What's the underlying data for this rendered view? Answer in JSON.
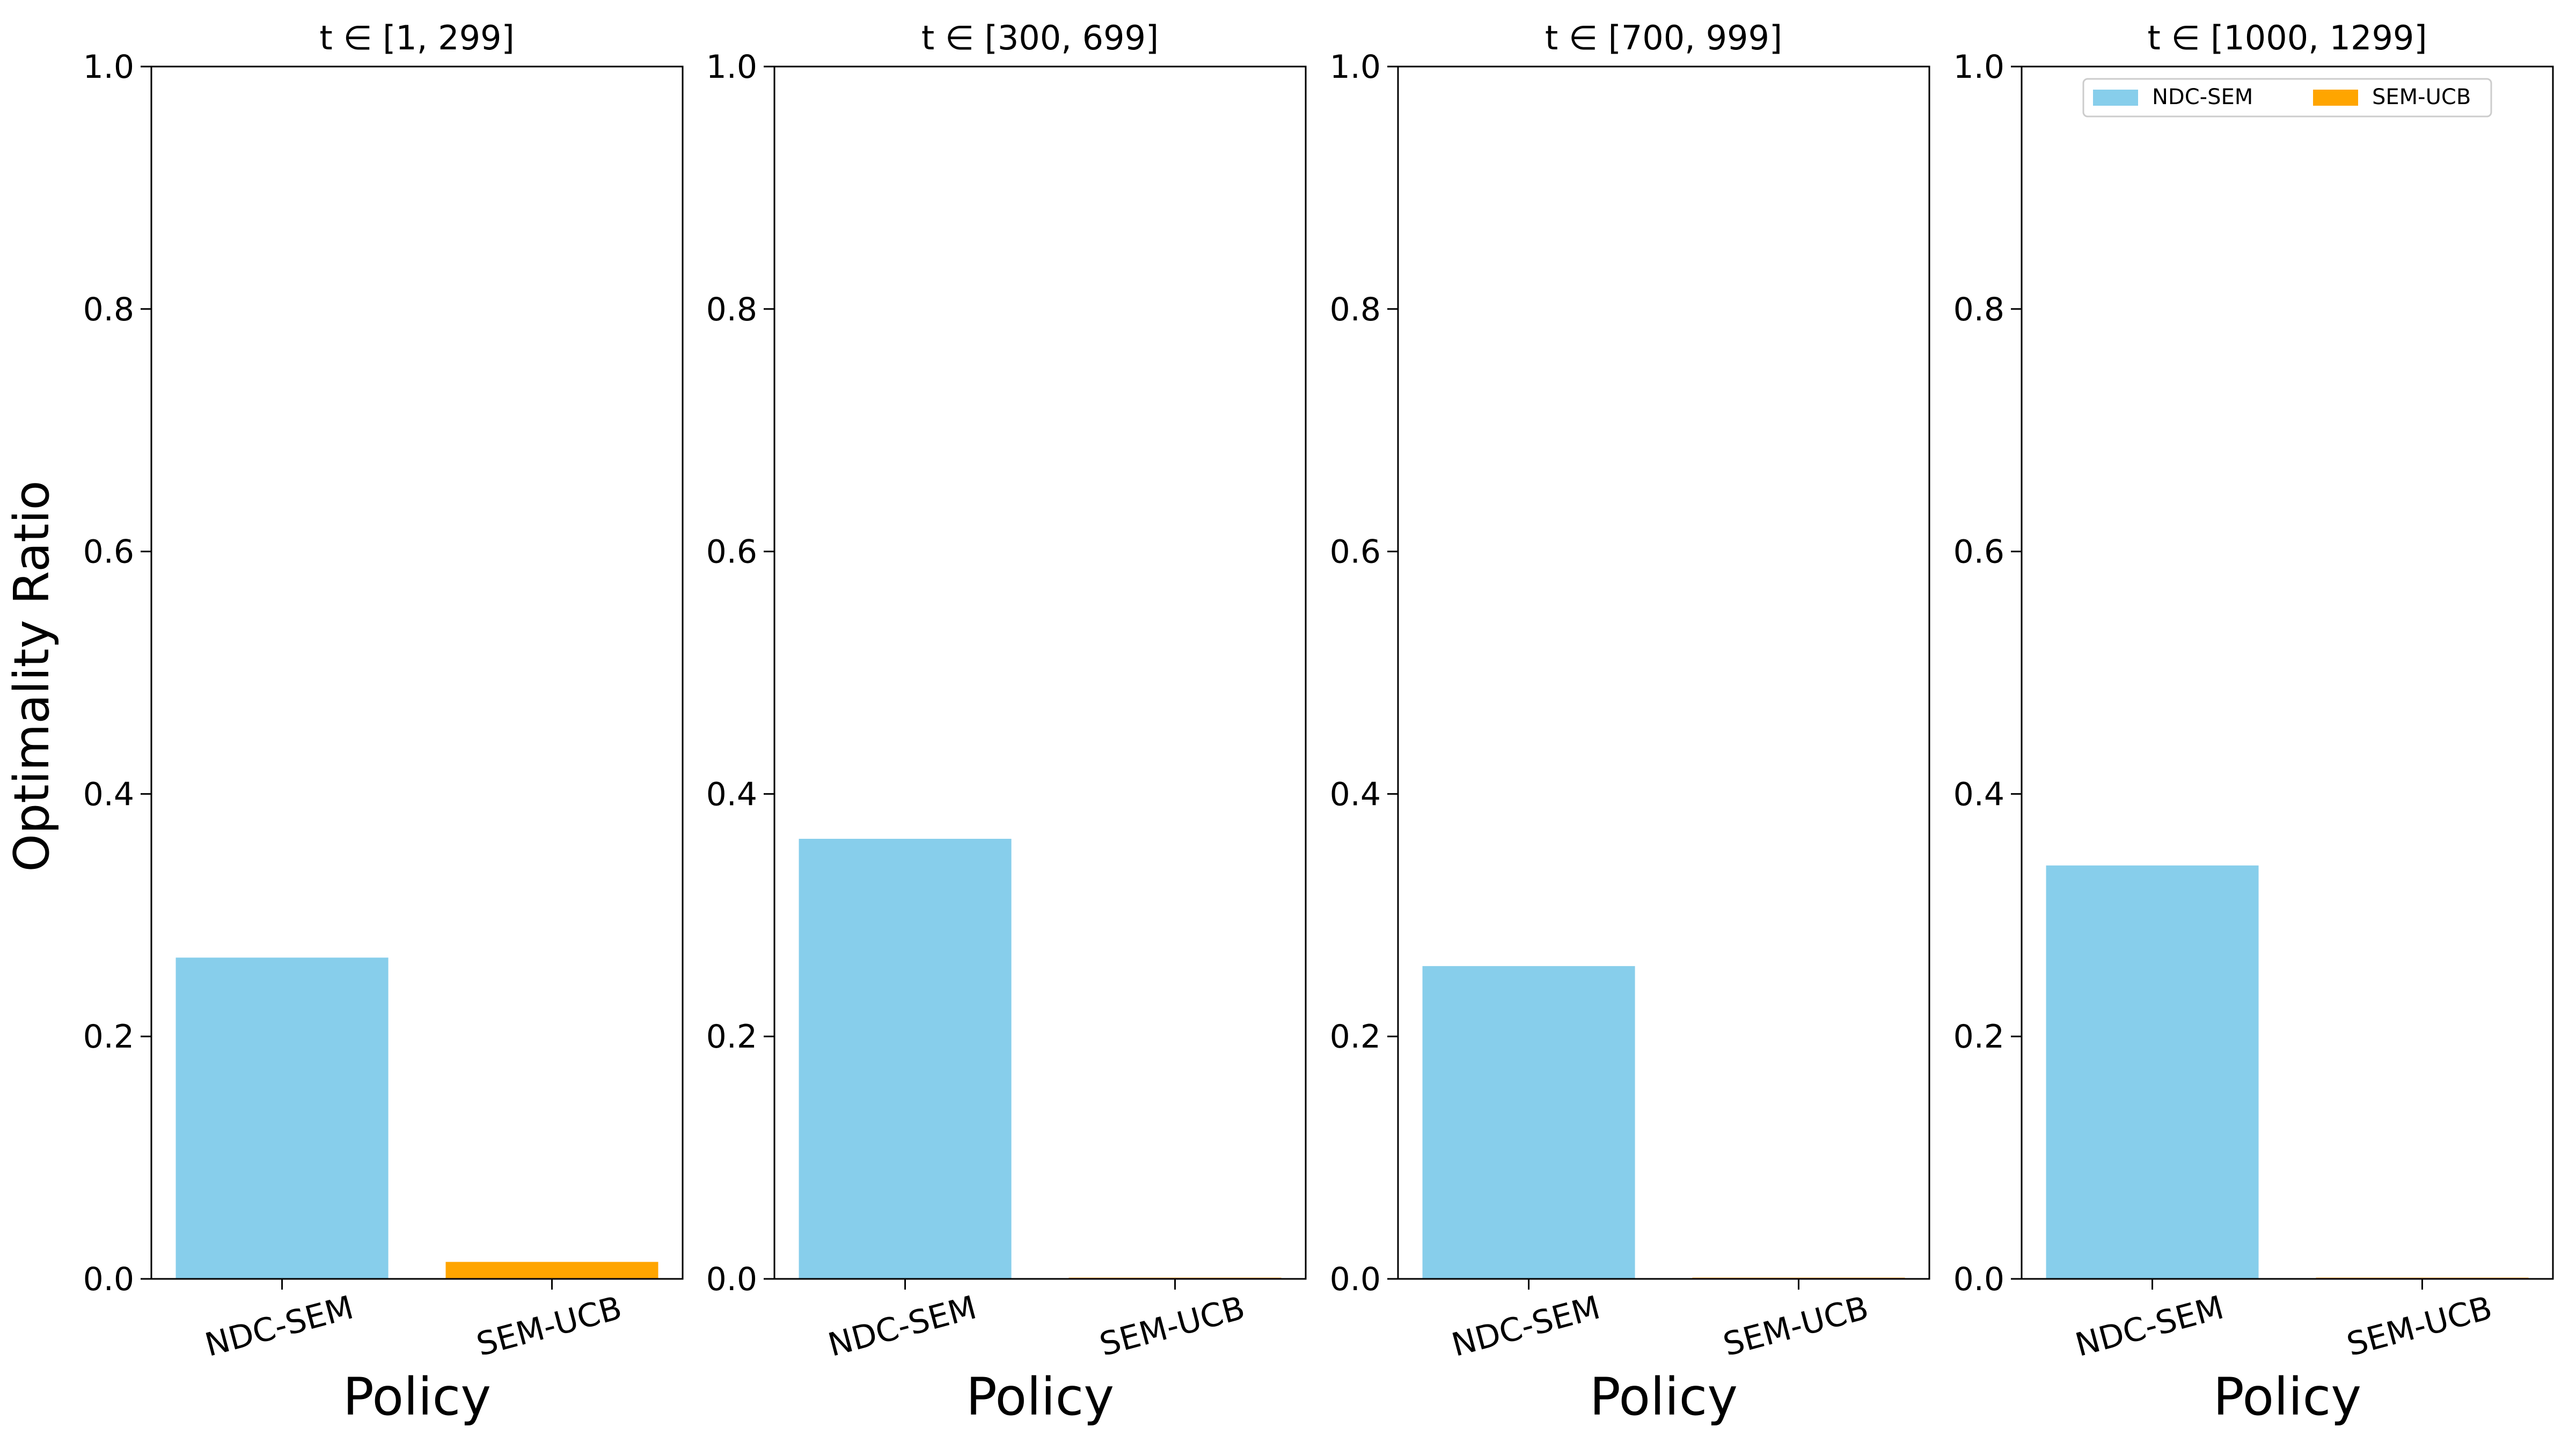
{
  "colors": {
    "NDC-SEM": "#87CEEB",
    "SEM-UCB": "#FFA500",
    "axis": "#000000",
    "background": "#ffffff"
  },
  "chart_data": {
    "type": "bar",
    "ylabel": "Optimality Ratio",
    "xlabel": "Policy",
    "ylim": [
      0,
      1.0
    ],
    "yticks": [
      "0.0",
      "0.2",
      "0.4",
      "0.6",
      "0.8",
      "1.0"
    ],
    "categories": [
      "NDC-SEM",
      "SEM-UCB"
    ],
    "legend": {
      "placement": "top-right (last panel only)",
      "entries": [
        "NDC-SEM",
        "SEM-UCB"
      ]
    },
    "panels": [
      {
        "title": "t ∈ [1, 299]",
        "values": [
          0.265,
          0.014
        ]
      },
      {
        "title": "t ∈ [300, 699]",
        "values": [
          0.363,
          0.001
        ]
      },
      {
        "title": "t ∈ [700, 999]",
        "values": [
          0.258,
          0.001
        ]
      },
      {
        "title": "t ∈ [1000, 1299]",
        "values": [
          0.341,
          0.001
        ]
      }
    ]
  }
}
